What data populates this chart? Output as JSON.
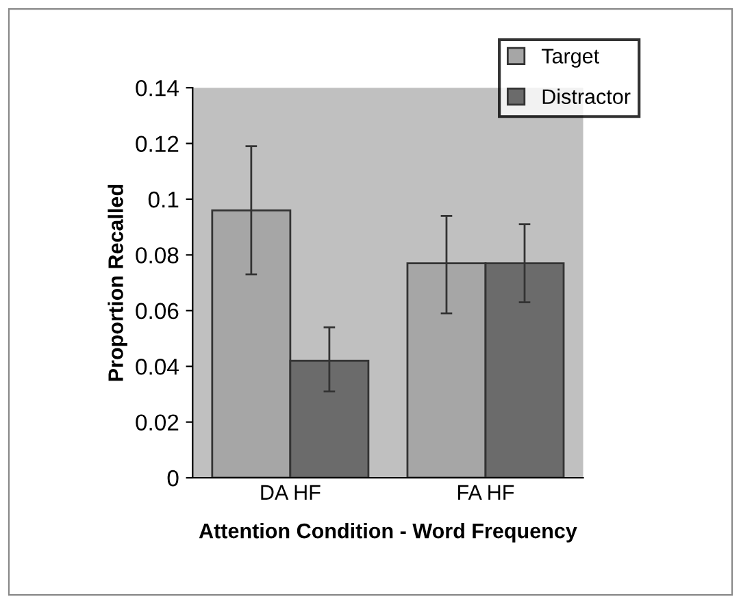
{
  "chart_data": {
    "type": "bar",
    "xlabel": "Attention Condition - Word Frequency",
    "ylabel": "Proportion Recalled",
    "categories": [
      "DA HF",
      "FA HF"
    ],
    "series": [
      {
        "name": "Target",
        "color": "#a6a6a6",
        "values": [
          0.096,
          0.077
        ],
        "errors": [
          [
            0.073,
            0.119
          ],
          [
            0.059,
            0.094
          ]
        ]
      },
      {
        "name": "Distractor",
        "color": "#6b6b6b",
        "values": [
          0.042,
          0.077
        ],
        "errors": [
          [
            0.031,
            0.054
          ],
          [
            0.063,
            0.091
          ]
        ]
      }
    ],
    "ylim": [
      0,
      0.14
    ],
    "yticks": [
      0,
      0.02,
      0.04,
      0.06,
      0.08,
      0.1,
      0.12,
      0.14
    ],
    "grid": false,
    "legend": "top right"
  }
}
